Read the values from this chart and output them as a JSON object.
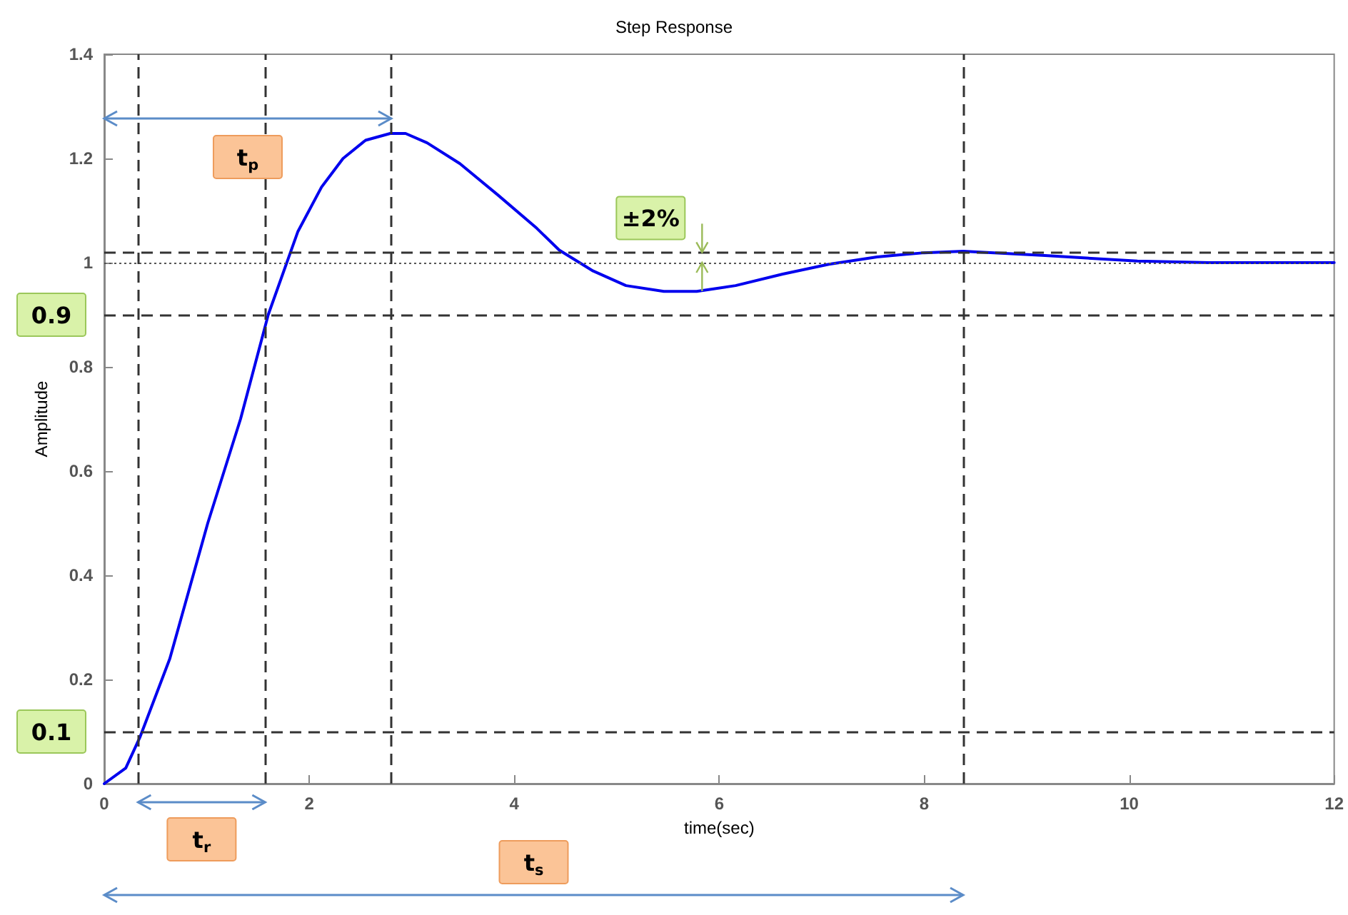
{
  "chart_data": {
    "type": "line",
    "title": "Step Response",
    "xlabel": "time(sec)",
    "ylabel": "Amplitude",
    "x": [
      0,
      0.21,
      0.35,
      0.64,
      1.01,
      1.33,
      1.6,
      1.89,
      2.12,
      2.33,
      2.55,
      2.79,
      2.94,
      3.15,
      3.47,
      3.84,
      4.22,
      4.44,
      4.77,
      5.09,
      5.46,
      5.78,
      6.16,
      6.62,
      7.07,
      7.54,
      8.0,
      8.38,
      9.15,
      10.08,
      10.78,
      12
    ],
    "values": [
      0,
      0.03,
      0.09,
      0.24,
      0.5,
      0.7,
      0.9,
      1.06,
      1.145,
      1.2,
      1.235,
      1.248,
      1.248,
      1.23,
      1.19,
      1.13,
      1.066,
      1.024,
      0.984,
      0.956,
      0.945,
      0.945,
      0.956,
      0.978,
      0.997,
      1.011,
      1.019,
      1.022,
      1.014,
      1.003,
      1.0,
      1.0
    ],
    "color": "#0000ee",
    "line_style": "solid",
    "marker": "none",
    "xlim": [
      0,
      12
    ],
    "xticks": [
      0,
      2,
      4,
      6,
      8,
      10,
      12
    ],
    "ylim": [
      0,
      1.4
    ],
    "yticks": [
      0,
      0.2,
      0.4,
      0.6,
      0.8,
      1,
      1.2,
      1.4
    ],
    "ref_lines": [
      {
        "axis": "y",
        "value": 1,
        "color": "#555555",
        "line_style": "dotted"
      },
      {
        "axis": "y",
        "value": 1.02,
        "color": "#333333",
        "line_style": "dashed"
      },
      {
        "axis": "y",
        "value": 0.9,
        "label": "0.9",
        "color": "#333333",
        "line_style": "dashed"
      },
      {
        "axis": "y",
        "value": 0.1,
        "label": "0.1",
        "color": "#333333",
        "line_style": "dashed"
      },
      {
        "axis": "x",
        "value": 0.33,
        "color": "#333333",
        "line_style": "dashed"
      },
      {
        "axis": "x",
        "value": 1.57,
        "color": "#333333",
        "line_style": "dashed"
      },
      {
        "axis": "x",
        "value": 2.8,
        "color": "#333333",
        "line_style": "dashed"
      },
      {
        "axis": "x",
        "value": 8.38,
        "color": "#333333",
        "line_style": "dashed"
      }
    ],
    "annotations": [
      "t$_{r}$",
      "t$_{p}$",
      "t$_{s}$",
      "±2%"
    ]
  }
}
